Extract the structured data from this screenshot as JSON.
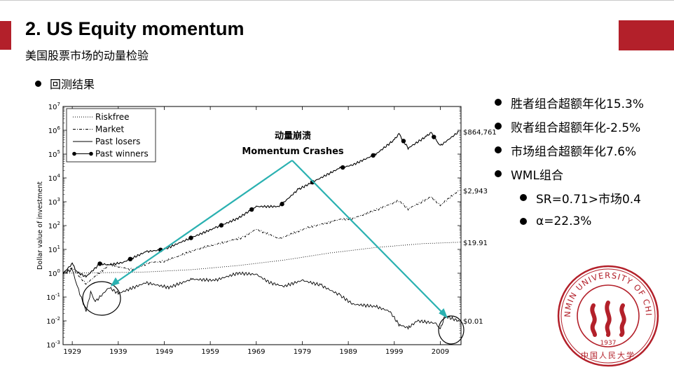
{
  "slide": {
    "title": "2. US Equity momentum",
    "subtitle": "美国股票市场的动量检验",
    "section_bullet": "回测结果",
    "accent_color": "#b3202a",
    "results": [
      {
        "level": 1,
        "text": "胜者组合超额年化15.3%"
      },
      {
        "level": 1,
        "text": "败者组合超额年化-2.5%"
      },
      {
        "level": 1,
        "text": "市场组合超额年化7.6%"
      },
      {
        "level": 1,
        "text": "WML组合"
      },
      {
        "level": 2,
        "text": "SR=0.71>市场0.4"
      },
      {
        "level": 2,
        "text": "α=22.3%"
      }
    ]
  },
  "annotation": {
    "line1": "动量崩溃",
    "line2": "Momentum Crashes",
    "arrow_color": "#2ab1b1"
  },
  "logo": {
    "name": "RENMIN UNIVERSITY OF CHINA",
    "year": "1937",
    "chinese": "中国人民大学",
    "color": "#b3202a"
  },
  "chart_data": {
    "type": "line",
    "ylabel": "Dollar value of investment",
    "y_scale": "log",
    "ylim_exponent": [
      -3,
      7
    ],
    "y_ticks": [
      {
        "exp": 7,
        "base": "10",
        "sup": "7"
      },
      {
        "exp": 6,
        "base": "10",
        "sup": "6"
      },
      {
        "exp": 5,
        "base": "10",
        "sup": "5"
      },
      {
        "exp": 4,
        "base": "10",
        "sup": "4"
      },
      {
        "exp": 3,
        "base": "10",
        "sup": "3"
      },
      {
        "exp": 2,
        "base": "10",
        "sup": "2"
      },
      {
        "exp": 1,
        "base": "10",
        "sup": "1"
      },
      {
        "exp": 0,
        "base": "10",
        "sup": "0"
      },
      {
        "exp": -1,
        "base": "10",
        "sup": "-1"
      },
      {
        "exp": -2,
        "base": "10",
        "sup": "-2"
      },
      {
        "exp": -3,
        "base": "10",
        "sup": "-3"
      }
    ],
    "xlim": [
      1927,
      2013.5
    ],
    "x_ticks": [
      "1929",
      "1939",
      "1949",
      "1959",
      "1969",
      "1979",
      "1989",
      "1999",
      "2009"
    ],
    "legend": {
      "position": "top-left",
      "entries": [
        "Riskfree",
        "Market",
        "Past losers",
        "Past winners"
      ]
    },
    "series": [
      {
        "name": "Riskfree",
        "style": "dotted",
        "end_label": "$19.91",
        "points": [
          [
            1927,
            0
          ],
          [
            1935,
            0.02
          ],
          [
            1945,
            0.05
          ],
          [
            1955,
            0.15
          ],
          [
            1965,
            0.32
          ],
          [
            1975,
            0.55
          ],
          [
            1985,
            0.85
          ],
          [
            1995,
            1.08
          ],
          [
            2005,
            1.24
          ],
          [
            2013,
            1.3
          ]
        ]
      },
      {
        "name": "Market",
        "style": "dashdot",
        "end_label": "$2,943",
        "points": [
          [
            1927,
            0
          ],
          [
            1929,
            0.22
          ],
          [
            1932,
            -0.45
          ],
          [
            1937,
            0.35
          ],
          [
            1942,
            0.15
          ],
          [
            1946,
            0.45
          ],
          [
            1949,
            0.5
          ],
          [
            1956,
            1.0
          ],
          [
            1962,
            1.3
          ],
          [
            1966,
            1.5
          ],
          [
            1969,
            1.85
          ],
          [
            1974,
            1.45
          ],
          [
            1980,
            1.9
          ],
          [
            1987,
            2.25
          ],
          [
            1990,
            2.3
          ],
          [
            1995,
            2.65
          ],
          [
            2000,
            3.05
          ],
          [
            2002,
            2.7
          ],
          [
            2007,
            3.2
          ],
          [
            2009,
            2.85
          ],
          [
            2013,
            3.47
          ]
        ]
      },
      {
        "name": "Past losers",
        "style": "solid",
        "end_label": "$0.01",
        "points": [
          [
            1927,
            0
          ],
          [
            1929,
            0.15
          ],
          [
            1930,
            -0.5
          ],
          [
            1932,
            -1.6
          ],
          [
            1933,
            -0.8
          ],
          [
            1934,
            -1.2
          ],
          [
            1937,
            -0.6
          ],
          [
            1939,
            -0.85
          ],
          [
            1945,
            -0.4
          ],
          [
            1950,
            -0.6
          ],
          [
            1955,
            -0.25
          ],
          [
            1960,
            -0.3
          ],
          [
            1965,
            0.0
          ],
          [
            1969,
            -0.05
          ],
          [
            1972,
            -0.4
          ],
          [
            1975,
            -0.55
          ],
          [
            1979,
            -0.3
          ],
          [
            1983,
            -0.5
          ],
          [
            1987,
            -0.9
          ],
          [
            1990,
            -1.3
          ],
          [
            1995,
            -1.4
          ],
          [
            1998,
            -1.6
          ],
          [
            2000,
            -2.15
          ],
          [
            2002,
            -2.3
          ],
          [
            2004,
            -2.0
          ],
          [
            2008,
            -2.1
          ],
          [
            2009,
            -2.35
          ],
          [
            2010,
            -1.8
          ],
          [
            2013,
            -2.0
          ]
        ]
      },
      {
        "name": "Past winners",
        "style": "solid-dots",
        "end_label": "$864,761",
        "points": [
          [
            1927,
            0
          ],
          [
            1929,
            0.4
          ],
          [
            1930,
            0.05
          ],
          [
            1932,
            -0.15
          ],
          [
            1935,
            0.4
          ],
          [
            1937,
            0.35
          ],
          [
            1940,
            0.45
          ],
          [
            1945,
            0.9
          ],
          [
            1949,
            1.0
          ],
          [
            1955,
            1.5
          ],
          [
            1960,
            1.9
          ],
          [
            1965,
            2.3
          ],
          [
            1969,
            2.8
          ],
          [
            1974,
            2.8
          ],
          [
            1978,
            3.5
          ],
          [
            1982,
            3.9
          ],
          [
            1987,
            4.4
          ],
          [
            1990,
            4.55
          ],
          [
            1995,
            5.0
          ],
          [
            1999,
            5.6
          ],
          [
            2000,
            5.85
          ],
          [
            2002,
            5.25
          ],
          [
            2006,
            5.75
          ],
          [
            2007,
            5.9
          ],
          [
            2008,
            5.6
          ],
          [
            2009,
            5.35
          ],
          [
            2013,
            5.94
          ]
        ]
      }
    ]
  }
}
